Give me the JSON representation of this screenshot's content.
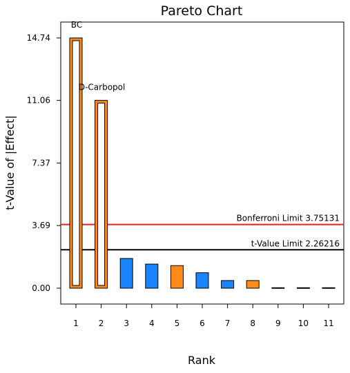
{
  "chart_data": {
    "type": "bar",
    "title": "Pareto Chart",
    "xlabel": "Rank",
    "ylabel": "t-Value of |Effect|",
    "categories": [
      "1",
      "2",
      "3",
      "4",
      "5",
      "6",
      "7",
      "8",
      "9",
      "10",
      "11"
    ],
    "values": [
      14.74,
      11.06,
      1.75,
      1.42,
      1.33,
      0.91,
      0.45,
      0.45,
      0.03,
      0.03,
      0.03
    ],
    "effect_sign": [
      "positive",
      "positive",
      "negative",
      "negative",
      "positive",
      "negative",
      "negative",
      "positive",
      "negative",
      "negative",
      "negative"
    ],
    "bar_style": [
      "hollow",
      "hollow",
      "solid",
      "solid",
      "solid",
      "solid",
      "solid",
      "solid",
      "solid",
      "solid",
      "solid"
    ],
    "bar_labels": [
      "BC",
      "D-Carbopol",
      "",
      "",
      "",
      "",
      "",
      "",
      "",
      "",
      ""
    ],
    "yticks": [
      0.0,
      3.69,
      7.37,
      11.06,
      14.74
    ],
    "ytick_labels": [
      "0.00",
      "3.69",
      "7.37",
      "11.06",
      "14.74"
    ],
    "ylim": [
      -0.9,
      16.4
    ],
    "reference_lines": [
      {
        "name": "Bonferroni Limit",
        "value": 3.75131,
        "label": "Bonferroni Limit 3.75131",
        "color": "#e8201c"
      },
      {
        "name": "t-Value Limit",
        "value": 2.26216,
        "label": "t-Value Limit 2.26216",
        "color": "#000000"
      }
    ],
    "colors": {
      "positive": "#ff8c1a",
      "negative": "#1a84ff",
      "outline": "#000000"
    },
    "grid": false,
    "legend": "none"
  }
}
